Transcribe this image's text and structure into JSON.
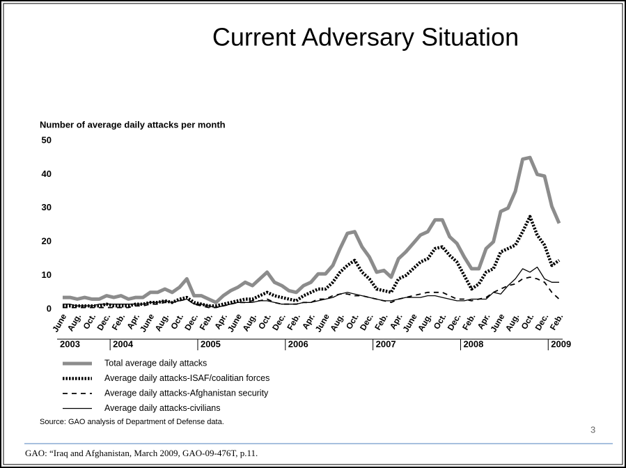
{
  "slide": {
    "title": "Current Adversary Situation",
    "page_number": "3",
    "footer": "GAO: “Iraq and Afghanistan, March 2009, GAO-09-476T, p.11."
  },
  "chart_data": {
    "type": "line",
    "ylabel": "Number of average daily attacks per month",
    "source": "Source: GAO analysis of Department of Defense data.",
    "categories": [
      "June",
      null,
      "Aug.",
      null,
      "Oct.",
      null,
      "Dec.",
      null,
      "Feb.",
      null,
      "Apr.",
      null,
      "June",
      null,
      "Aug.",
      null,
      "Oct.",
      null,
      "Dec.",
      null,
      "Feb.",
      null,
      "Apr.",
      null,
      "June",
      null,
      "Aug.",
      null,
      "Oct.",
      null,
      "Dec.",
      null,
      "Feb.",
      null,
      "Apr.",
      null,
      "June",
      null,
      "Aug.",
      null,
      "Oct.",
      null,
      "Dec.",
      null,
      "Feb.",
      null,
      "Apr.",
      null,
      "June",
      null,
      "Aug.",
      null,
      "Oct.",
      null,
      "Dec.",
      null,
      "Feb.",
      null,
      "Apr.",
      null,
      "June",
      null,
      "Aug.",
      null,
      "Oct.",
      null,
      "Dec.",
      null,
      "Feb."
    ],
    "years": [
      "2003",
      "2004",
      "2005",
      "2006",
      "2007",
      "2008",
      "2009"
    ],
    "ylim": [
      0,
      50
    ],
    "yticks": [
      0,
      10,
      20,
      30,
      40,
      50
    ],
    "grid": false,
    "series": [
      {
        "name": "Total average daily attacks",
        "color": "#8c8c8c",
        "width": 5,
        "dash": "none",
        "values": [
          3.5,
          3.5,
          3,
          3.5,
          3,
          3,
          4,
          3.5,
          4,
          3,
          3.5,
          3.5,
          5,
          5,
          6,
          5,
          6.5,
          9,
          4,
          4,
          3,
          2,
          4,
          5.5,
          6.5,
          8,
          7,
          9,
          11,
          8,
          7,
          5.5,
          5,
          7,
          8,
          10.5,
          10.5,
          13,
          18,
          22.5,
          23,
          18.5,
          15.5,
          11,
          11.5,
          9.5,
          15,
          17,
          19.5,
          22,
          23,
          26.5,
          26.5,
          21.5,
          19.5,
          15.5,
          12,
          12,
          18,
          20,
          29,
          30,
          35,
          44.5,
          45,
          40,
          39.5,
          30.5,
          25.5
        ]
      },
      {
        "name": "Average daily attacks-ISAF/coalitian forces",
        "color": "#000000",
        "width": 4.5,
        "dash": "2.5,2",
        "values": [
          1,
          1,
          1,
          1,
          1,
          1,
          1.5,
          1,
          1,
          1,
          1.5,
          1.5,
          2,
          2,
          2.5,
          2,
          3,
          3.5,
          2,
          1.5,
          1,
          1,
          1.5,
          2,
          2.5,
          3,
          3,
          4,
          5,
          4,
          3.5,
          3,
          2.5,
          4,
          5,
          6,
          6,
          8,
          11,
          13,
          14.5,
          11,
          9,
          6,
          5.5,
          5,
          9,
          10,
          12,
          14,
          15,
          18,
          18.5,
          16,
          14,
          10,
          6,
          7.5,
          11,
          12,
          17,
          18,
          19,
          23,
          27.5,
          22,
          19,
          13,
          14.5
        ]
      },
      {
        "name": "Average daily attacks-Afghanistan security",
        "color": "#000000",
        "width": 1.8,
        "dash": "7,6",
        "values": [
          0.5,
          0.5,
          0.5,
          0.5,
          0.5,
          0.5,
          0.5,
          0.5,
          0.5,
          0.5,
          1,
          1,
          1.5,
          1.5,
          2,
          2,
          2.5,
          3,
          1.5,
          1,
          0.5,
          0.5,
          1,
          1.5,
          2,
          2,
          2.5,
          2.5,
          3,
          2,
          1.5,
          1.5,
          1.5,
          2,
          2,
          3,
          3,
          4,
          4.5,
          4.5,
          4,
          4,
          3.5,
          3,
          2.5,
          2,
          3,
          3.5,
          4,
          4.5,
          5,
          5,
          5,
          4,
          3,
          3,
          2.5,
          3,
          3.5,
          5,
          6,
          7,
          7.5,
          9,
          9.5,
          9,
          8,
          5,
          3
        ]
      },
      {
        "name": "Average daily attacks-civilians",
        "color": "#000000",
        "width": 1.3,
        "dash": "none",
        "values": [
          1.5,
          1.5,
          1,
          1,
          1,
          1.5,
          1.5,
          1.5,
          1.5,
          1.5,
          1.5,
          1.5,
          2,
          2,
          2.5,
          2,
          2.5,
          3,
          1.5,
          1.5,
          1,
          0.5,
          1,
          1.5,
          2,
          2,
          2,
          2.5,
          2.5,
          2,
          1.5,
          1.5,
          1.5,
          2,
          2,
          2.5,
          3,
          3.5,
          4.5,
          5,
          4.5,
          4,
          3.5,
          3,
          2.5,
          2.5,
          3,
          3.5,
          3.5,
          3.5,
          4,
          4,
          3.5,
          3,
          2.5,
          2.5,
          3,
          3,
          3,
          5,
          4.5,
          7,
          9,
          12,
          11,
          12.5,
          9,
          8,
          8
        ]
      }
    ]
  }
}
